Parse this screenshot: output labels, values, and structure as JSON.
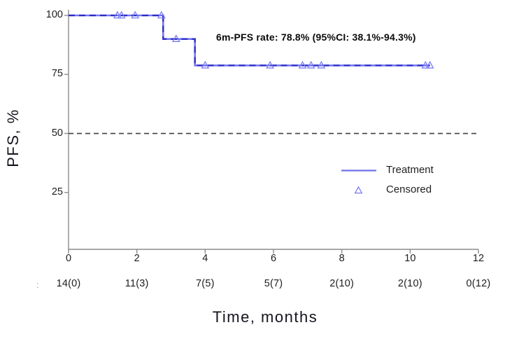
{
  "chart_data": {
    "type": "line",
    "subtype": "kaplan-meier-step-curve",
    "title": "",
    "xlabel": "Time, months",
    "ylabel": "PFS, %",
    "annotation": "6m-PFS rate: 78.8% (95%CI: 38.1%-94.3%)",
    "xlim": [
      0,
      12
    ],
    "ylim": [
      0,
      100
    ],
    "x_ticks": [
      0,
      2,
      4,
      6,
      8,
      10,
      12
    ],
    "y_ticks": [
      100,
      75,
      50,
      25
    ],
    "grid": false,
    "reference_line": {
      "y": 50,
      "style": "dashed",
      "color": "#404040"
    },
    "series": [
      {
        "name": "Treatment",
        "type": "step",
        "color": "#7577ee",
        "dash_overlay_color": "#2b2bc4",
        "points": [
          [
            0,
            100
          ],
          [
            2.77,
            100
          ],
          [
            2.77,
            90
          ],
          [
            3.7,
            90
          ],
          [
            3.7,
            78.8
          ],
          [
            10.58,
            78.8
          ]
        ]
      }
    ],
    "censored": {
      "name": "Censored",
      "marker": "open-triangle",
      "color": "#7b7df2",
      "points": [
        [
          1.43,
          100
        ],
        [
          1.55,
          100
        ],
        [
          1.95,
          100
        ],
        [
          2.72,
          100
        ],
        [
          3.15,
          90
        ],
        [
          4.0,
          78.8
        ],
        [
          5.9,
          78.8
        ],
        [
          6.85,
          78.8
        ],
        [
          7.1,
          78.8
        ],
        [
          7.4,
          78.8
        ],
        [
          10.45,
          78.8
        ],
        [
          10.58,
          78.8
        ]
      ]
    },
    "legend": {
      "position": "inside-right",
      "entries": [
        {
          "label": "Treatment",
          "marker": "line"
        },
        {
          "label": "Censored",
          "marker": "open-triangle"
        }
      ]
    },
    "at_risk": {
      "row_label_fragment": ":",
      "values": [
        "14(0)",
        "11(3)",
        "7(5)",
        "5(7)",
        "2(10)",
        "2(10)",
        "0(12)"
      ]
    },
    "colors": {
      "axis": "#8c8c8c",
      "tick_text": "#1d1d1d",
      "title_text": "#14141e",
      "annotation_text": "#0a0a0a"
    }
  }
}
